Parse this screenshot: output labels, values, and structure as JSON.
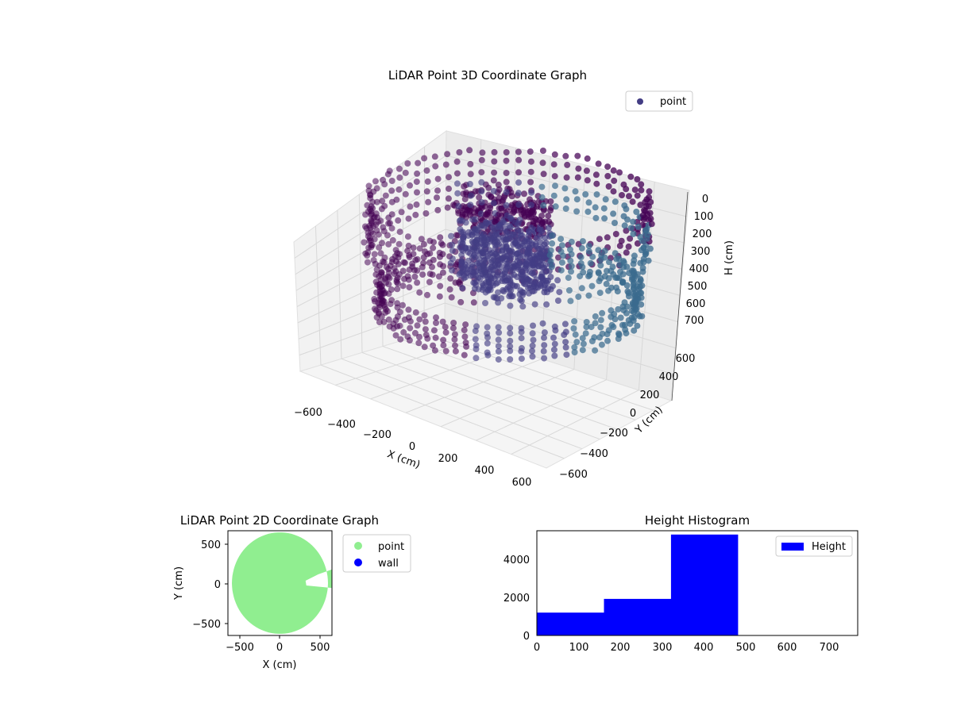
{
  "chart_data": [
    {
      "type": "scatter",
      "projection": "3d",
      "title": "LiDAR Point 3D Coordinate Graph",
      "xlabel": "X (cm)",
      "ylabel": "Y (cm)",
      "zlabel": "H (cm)",
      "xticks": [
        "−600",
        "−400",
        "−200",
        "0",
        "200",
        "400",
        "600"
      ],
      "yticks": [
        "−600",
        "−400",
        "−200",
        "0",
        "200",
        "400",
        "600"
      ],
      "zticks": [
        "0",
        "100",
        "200",
        "300",
        "400",
        "500",
        "600",
        "700"
      ],
      "xlim": [
        -650,
        650
      ],
      "ylim": [
        -650,
        650
      ],
      "zlim": [
        760,
        0
      ],
      "z_inverted": true,
      "legend": {
        "entries": [
          "point"
        ],
        "placement": "top-right"
      },
      "colors": {
        "near": "#440154",
        "mid": "#433d84",
        "far": "#3a6b8e"
      },
      "series": [
        {
          "name": "point",
          "components": [
            {
              "shape": "ring",
              "radius": 560,
              "h_range": [
                60,
                300
              ]
            },
            {
              "shape": "ring",
              "radius": 520,
              "h_range": [
                420,
                560
              ]
            },
            {
              "shape": "cluster",
              "center": [
                -60,
                -40
              ],
              "spread": 220,
              "h_range": [
                80,
                480
              ]
            }
          ]
        }
      ]
    },
    {
      "type": "scatter",
      "title": "LiDAR Point 2D Coordinate Graph",
      "xlabel": "X (cm)",
      "ylabel": "Y (cm)",
      "xticks": [
        "−500",
        "0",
        "500"
      ],
      "yticks": [
        "−500",
        "0",
        "500"
      ],
      "xlim": [
        -650,
        650
      ],
      "ylim": [
        -650,
        650
      ],
      "legend": {
        "entries": [
          {
            "label": "point",
            "color": "#90ee90"
          },
          {
            "label": "wall",
            "color": "#0000ff"
          }
        ],
        "placement": "outside-right"
      },
      "series": [
        {
          "name": "point",
          "shape": "disc",
          "radius": 600,
          "color": "#90ee90"
        },
        {
          "name": "wall",
          "color": "#0000ff"
        }
      ]
    },
    {
      "type": "bar",
      "title": "Height Histogram",
      "xlim": [
        0,
        770
      ],
      "ylim": [
        0,
        5500
      ],
      "xticks": [
        "0",
        "100",
        "200",
        "300",
        "400",
        "500",
        "600",
        "700"
      ],
      "yticks": [
        "0",
        "2000",
        "4000"
      ],
      "legend": {
        "entries": [
          "Height"
        ],
        "placement": "top-right"
      },
      "color": "#0000ff",
      "bins": [
        {
          "x0": 0,
          "x1": 161,
          "count": 1200
        },
        {
          "x0": 161,
          "x1": 322,
          "count": 1920
        },
        {
          "x0": 322,
          "x1": 483,
          "count": 5300
        }
      ]
    }
  ]
}
